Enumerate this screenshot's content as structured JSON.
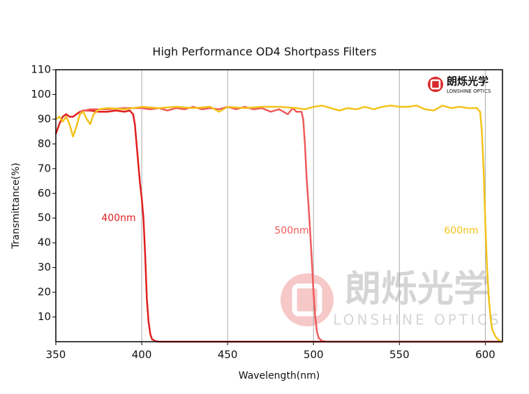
{
  "chart_data": {
    "type": "line",
    "title": "High Performance OD4 Shortpass Filters",
    "x_label": "Wavelength(nm)",
    "y_label": "Transmittance(%)",
    "xlim": [
      350,
      610
    ],
    "ylim": [
      0,
      110
    ],
    "xticks": [
      350,
      400,
      450,
      500,
      550,
      600
    ],
    "yticks": [
      10,
      20,
      30,
      40,
      50,
      60,
      70,
      80,
      90,
      100,
      110
    ],
    "grid": "x",
    "logo": {
      "brand": "朗烁光学",
      "brand_en": "LONSHINE OPTICS"
    },
    "series": [
      {
        "name": "400nm",
        "color": "#e01e1e",
        "x": [
          350,
          352,
          354,
          356,
          358,
          360,
          362,
          364,
          366,
          370,
          375,
          380,
          385,
          390,
          393,
          395,
          396,
          397,
          398,
          399,
          400,
          401,
          402,
          403,
          404,
          405,
          406,
          408,
          410,
          450,
          500,
          550,
          610
        ],
        "values": [
          84,
          88,
          91,
          92,
          91,
          91,
          92,
          93,
          93.5,
          93.5,
          93,
          93,
          93.5,
          93,
          93.5,
          92,
          88,
          80,
          72,
          64,
          58,
          50,
          35,
          17,
          8,
          3,
          1,
          0.2,
          0,
          0,
          0,
          0,
          0
        ]
      },
      {
        "name": "500nm",
        "color": "#ee5a5a",
        "x": [
          364,
          370,
          380,
          390,
          400,
          405,
          410,
          415,
          420,
          425,
          430,
          435,
          440,
          445,
          450,
          455,
          460,
          465,
          470,
          475,
          480,
          485,
          488,
          490,
          493,
          494,
          495,
          496,
          497,
          498,
          499,
          500,
          501,
          502,
          503,
          505,
          508,
          550,
          610
        ],
        "values": [
          93,
          94,
          94,
          94.5,
          94.5,
          94,
          94.5,
          93.5,
          94.5,
          94,
          95,
          94,
          94.5,
          94,
          95,
          94,
          95,
          94,
          94.5,
          93,
          94,
          92,
          94.5,
          93,
          93,
          90,
          80,
          66,
          56,
          45,
          33,
          20,
          10,
          4,
          1.5,
          0.3,
          0,
          0,
          0
        ]
      },
      {
        "name": "600nm",
        "color": "#f3c21a",
        "x": [
          350,
          352,
          354,
          356,
          358,
          360,
          362,
          364,
          366,
          368,
          370,
          372,
          375,
          380,
          390,
          400,
          410,
          420,
          430,
          440,
          445,
          450,
          460,
          470,
          480,
          490,
          495,
          500,
          505,
          510,
          515,
          520,
          525,
          530,
          535,
          540,
          545,
          550,
          555,
          560,
          565,
          570,
          575,
          580,
          585,
          590,
          595,
          597,
          598,
          599,
          600,
          601,
          602,
          603,
          604,
          606,
          608,
          610
        ],
        "values": [
          90,
          91,
          89,
          91,
          88,
          83,
          87,
          92,
          93,
          90,
          88,
          92,
          94,
          94.5,
          94,
          95,
          94.5,
          95,
          94.5,
          95,
          93,
          95,
          94.5,
          95,
          95,
          94.5,
          94,
          95,
          95.5,
          94.5,
          93.5,
          94.5,
          94,
          95,
          94,
          95,
          95.5,
          95,
          95,
          95.5,
          94,
          93.5,
          95.5,
          94.5,
          95,
          94.5,
          94.5,
          93,
          85,
          70,
          48,
          30,
          18,
          10,
          5,
          2,
          0.5,
          0
        ]
      }
    ]
  }
}
